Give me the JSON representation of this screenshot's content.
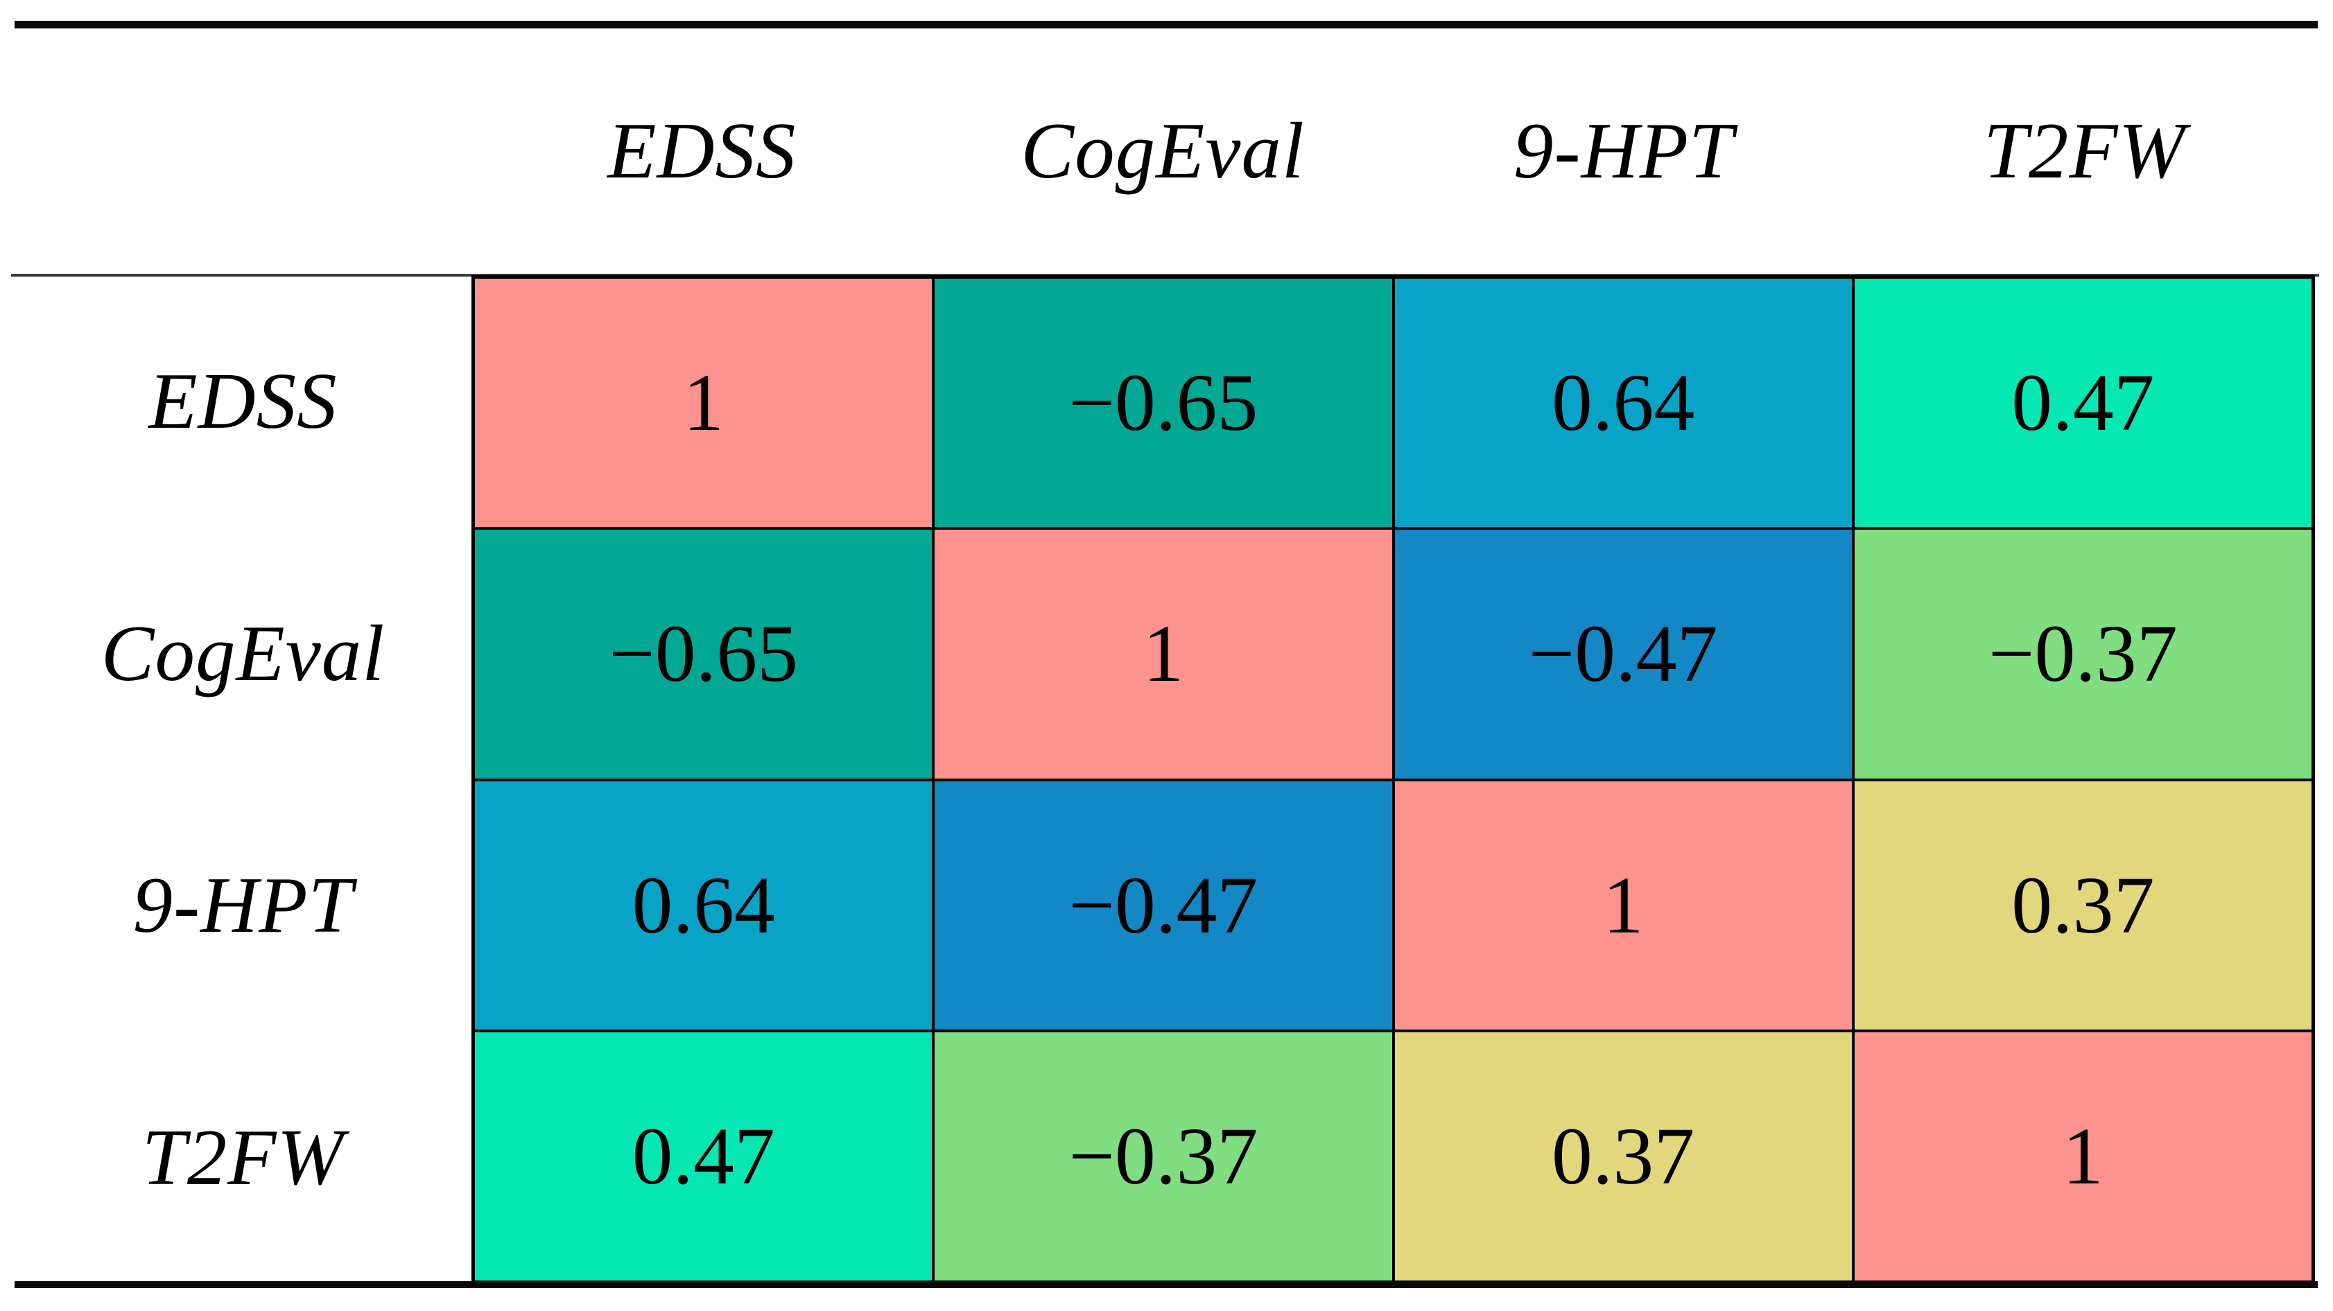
{
  "chart_data": {
    "type": "heatmap",
    "description_visible": "correlation matrix table",
    "columns": [
      "EDSS",
      "CogEval",
      "9-HPT",
      "T2FW"
    ],
    "rows": [
      "EDSS",
      "CogEval",
      "9-HPT",
      "T2FW"
    ],
    "matrix": [
      [
        1,
        -0.65,
        0.64,
        0.47
      ],
      [
        -0.65,
        1,
        -0.47,
        -0.37
      ],
      [
        0.64,
        -0.47,
        1,
        0.37
      ],
      [
        0.47,
        -0.37,
        0.37,
        1
      ]
    ],
    "cell_labels": [
      [
        "1",
        "−0.65",
        "0.64",
        "0.47"
      ],
      [
        "−0.65",
        "1",
        "−0.47",
        "−0.37"
      ],
      [
        "0.64",
        "−0.47",
        "1",
        "0.37"
      ],
      [
        "0.47",
        "−0.37",
        "0.37",
        "1"
      ]
    ],
    "cell_colors": [
      [
        "#FC938F",
        "#02A894",
        "#09A3C8",
        "#06E8B4"
      ],
      [
        "#02A894",
        "#FC938F",
        "#1488C4",
        "#80DE80"
      ],
      [
        "#09A3C8",
        "#1488C4",
        "#FC938F",
        "#E3D77E"
      ],
      [
        "#06E8B4",
        "#80DE80",
        "#E3D77E",
        "#FC938F"
      ]
    ],
    "palette_legend": {
      "value_1": "#FC938F",
      "value_-0.65": "#02A894",
      "value_0.64": "#09A3C8",
      "value_0.47": "#06E8B4",
      "value_-0.47": "#1488C4",
      "value_-0.37": "#80DE80",
      "value_0.37": "#E3D77E"
    },
    "layout_hints": {
      "grid": "on",
      "cell_border_color": "#000000",
      "top_rule_color": "#0a0a0a",
      "bottom_rule_color": "#0a0a0a",
      "header_rule_color": "#3d3d3d",
      "text_color": "#000000",
      "background": "#ffffff"
    }
  }
}
